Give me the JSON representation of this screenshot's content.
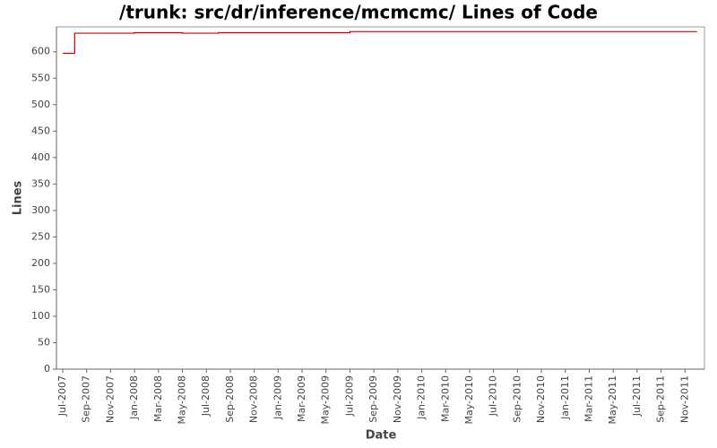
{
  "chart_data": {
    "type": "line",
    "title": "/trunk: src/dr/inference/mcmcmc/ Lines of Code",
    "x_label": "Date",
    "y_label": "Lines",
    "x": [
      "2007-07",
      "2007-08",
      "2008-01",
      "2008-05",
      "2008-08",
      "2009-07",
      "2011-12"
    ],
    "series": [
      {
        "name": "Lines",
        "color": "#cc0000",
        "values": [
          597,
          635,
          636,
          635,
          636,
          638,
          638
        ]
      }
    ],
    "step": true,
    "xlim": [
      "2007-07",
      "2012-01"
    ],
    "xticks": [
      {
        "value": "2007-07",
        "label": "Jul-2007"
      },
      {
        "value": "2007-09",
        "label": "Sep-2007"
      },
      {
        "value": "2007-11",
        "label": "Nov-2007"
      },
      {
        "value": "2008-01",
        "label": "Jan-2008"
      },
      {
        "value": "2008-03",
        "label": "Mar-2008"
      },
      {
        "value": "2008-05",
        "label": "May-2008"
      },
      {
        "value": "2008-07",
        "label": "Jul-2008"
      },
      {
        "value": "2008-09",
        "label": "Sep-2008"
      },
      {
        "value": "2008-11",
        "label": "Nov-2008"
      },
      {
        "value": "2009-01",
        "label": "Jan-2009"
      },
      {
        "value": "2009-03",
        "label": "Mar-2009"
      },
      {
        "value": "2009-05",
        "label": "May-2009"
      },
      {
        "value": "2009-07",
        "label": "Jul-2009"
      },
      {
        "value": "2009-09",
        "label": "Sep-2009"
      },
      {
        "value": "2009-11",
        "label": "Nov-2009"
      },
      {
        "value": "2010-01",
        "label": "Jan-2010"
      },
      {
        "value": "2010-03",
        "label": "Mar-2010"
      },
      {
        "value": "2010-05",
        "label": "May-2010"
      },
      {
        "value": "2010-07",
        "label": "Jul-2010"
      },
      {
        "value": "2010-09",
        "label": "Sep-2010"
      },
      {
        "value": "2010-11",
        "label": "Nov-2010"
      },
      {
        "value": "2011-01",
        "label": "Jan-2011"
      },
      {
        "value": "2011-03",
        "label": "Mar-2011"
      },
      {
        "value": "2011-05",
        "label": "May-2011"
      },
      {
        "value": "2011-07",
        "label": "Jul-2011"
      },
      {
        "value": "2011-09",
        "label": "Sep-2011"
      },
      {
        "value": "2011-11",
        "label": "Nov-2011"
      }
    ],
    "ylim": [
      0,
      647
    ],
    "yticks": [
      0,
      50,
      100,
      150,
      200,
      250,
      300,
      350,
      400,
      450,
      500,
      550,
      600
    ],
    "grid": false
  }
}
